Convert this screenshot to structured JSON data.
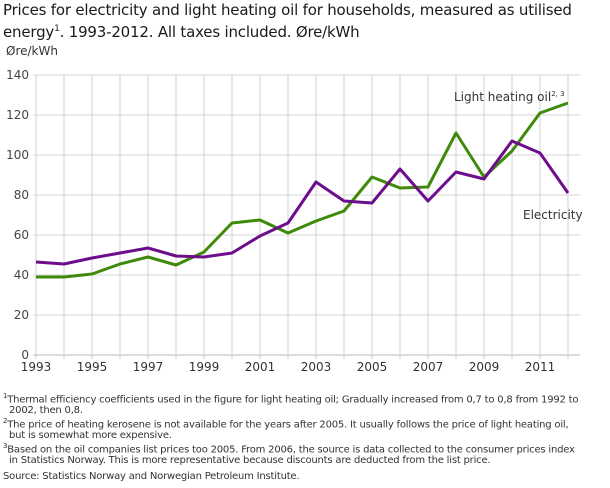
{
  "title": "Prices for electricity and light heating oil for households, measured as utilised energy",
  "title_sup": "1",
  "title_rest": ". 1993-2012. All taxes included. Øre/kWh",
  "chart_data": {
    "type": "line",
    "ylabel": "Øre/kWh",
    "ylim": [
      0,
      140
    ],
    "yticks": [
      0,
      20,
      40,
      60,
      80,
      100,
      120,
      140
    ],
    "xlim": [
      1993,
      2012
    ],
    "xticks": [
      1993,
      1995,
      1997,
      1999,
      2001,
      2003,
      2005,
      2007,
      2009,
      2011
    ],
    "grid": true,
    "x": [
      1993,
      1994,
      1995,
      1996,
      1997,
      1998,
      1999,
      2000,
      2001,
      2002,
      2003,
      2004,
      2005,
      2006,
      2007,
      2008,
      2009,
      2010,
      2011,
      2012
    ],
    "series": [
      {
        "name": "Light heating oil",
        "name_sup": "2, 3",
        "color": "#3f8a0a",
        "values": [
          39,
          39,
          40.5,
          45.5,
          49,
          45,
          51.5,
          66,
          67.5,
          61,
          67,
          72,
          89,
          83.5,
          84,
          111,
          89,
          102,
          121,
          126
        ]
      },
      {
        "name": "Electricity",
        "color": "#6c0e8c",
        "values": [
          46.5,
          45.5,
          48.5,
          51,
          53.5,
          49.5,
          49,
          51,
          59.5,
          66,
          86.5,
          77,
          76,
          93,
          77,
          91.5,
          88,
          107,
          101,
          81
        ]
      }
    ]
  },
  "footnotes": [
    {
      "mark": "1",
      "text": "Thermal efficiency coefficients used in the figure for light heating oil; Gradually increased from 0,7 to 0,8 from 1992 to",
      "cont": "2002, then 0,8."
    },
    {
      "mark": "2",
      "text": "The price of heating kerosene is not available for the years after 2005. It usually follows the price of light heating oil,",
      "cont": "but is somewhat more expensive."
    },
    {
      "mark": "3",
      "text": "Based on the oil companies list prices too 2005. From 2006, the source is data collected to the consumer prices index",
      "cont": "in Statistics Norway. This is more representative because discounts are deducted from the list price."
    }
  ],
  "source": "Source: Statistics Norway and Norwegian Petroleum Institute."
}
